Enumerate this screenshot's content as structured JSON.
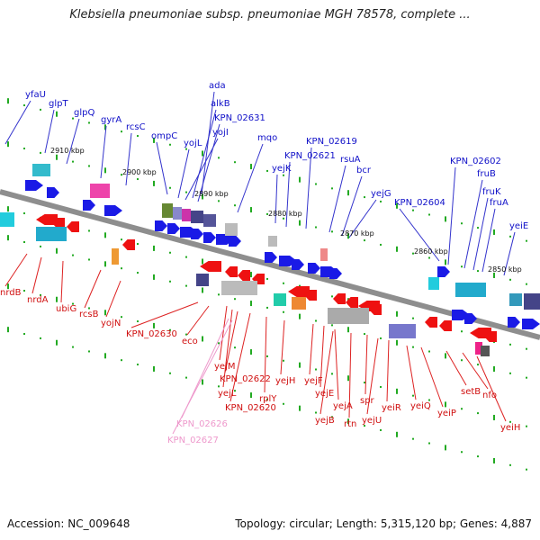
{
  "title": "Klebsiella pneumoniae subsp. pneumoniae MGH 78578, complete ...",
  "footer": {
    "accession": "Accession: NC_009648",
    "summary": "Topology: circular; Length: 5,315,120 bp; Genes: 4,887"
  },
  "colors": {
    "forward_label": "#1010c8",
    "reverse_label": "#d01010",
    "pseudo_label": "#ee99cc",
    "forward_arrow": "#1a1ae6",
    "reverse_arrow": "#ee1111",
    "tick": "#22aa22"
  },
  "kbp_marks": [
    "2910 kbp",
    "2900 kbp",
    "2890 kbp",
    "2880 kbp",
    "2870 kbp",
    "2860 kbp",
    "2850 kbp"
  ],
  "forward_genes": [
    "yfaU",
    "glpT",
    "glpQ",
    "gyrA",
    "rcsC",
    "ompC",
    "ada",
    "alkB",
    "yojL",
    "yojI",
    "KPN_02631",
    "mqo",
    "yejK",
    "KPN_02621",
    "KPN_02619",
    "rsuA",
    "bcr",
    "yejG",
    "KPN_02604",
    "KPN_02602",
    "fruB",
    "fruK",
    "fruA",
    "yeiE"
  ],
  "reverse_genes": [
    "nrdB",
    "nrdA",
    "ubiG",
    "rcsB",
    "yojN",
    "KPN_02630",
    "eco",
    "yejM",
    "yejL",
    "KPN_02622",
    "KPN_02620",
    "rplY",
    "yejH",
    "yejF",
    "yejE",
    "yejA",
    "yejB",
    "rtn",
    "spr",
    "yejU",
    "yeiR",
    "yeiQ",
    "yeiP",
    "setB",
    "nfo",
    "yeiH"
  ],
  "pseudo_genes": [
    "KPN_02626",
    "KPN_02627"
  ]
}
